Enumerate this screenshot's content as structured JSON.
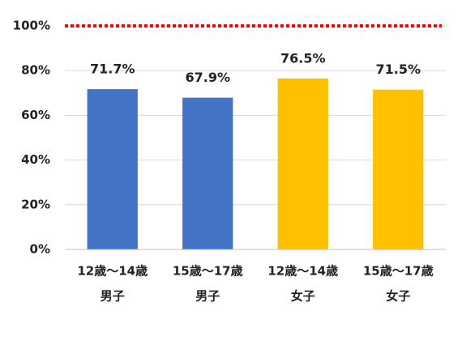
{
  "chart_data": {
    "type": "bar",
    "categories": [
      "12歳～14歳",
      "15歳～17歳",
      "12歳～14歳",
      "15歳～17歳"
    ],
    "category_groups": [
      "男子",
      "男子",
      "女子",
      "女子"
    ],
    "values": [
      71.7,
      67.9,
      76.5,
      71.5
    ],
    "value_labels": [
      "71.7%",
      "67.9%",
      "76.5%",
      "71.5%"
    ],
    "colors": [
      "#4472c4",
      "#4472c4",
      "#ffc000",
      "#ffc000"
    ],
    "ylim": [
      0,
      100
    ],
    "yticks": [
      {
        "value": 0,
        "label": "0%"
      },
      {
        "value": 20,
        "label": "20%"
      },
      {
        "value": 40,
        "label": "40%"
      },
      {
        "value": 60,
        "label": "60%"
      },
      {
        "value": 80,
        "label": "80%"
      },
      {
        "value": 100,
        "label": "100%"
      }
    ],
    "grid": true,
    "reference_line": {
      "value": 100,
      "color": "#ff0000"
    }
  }
}
